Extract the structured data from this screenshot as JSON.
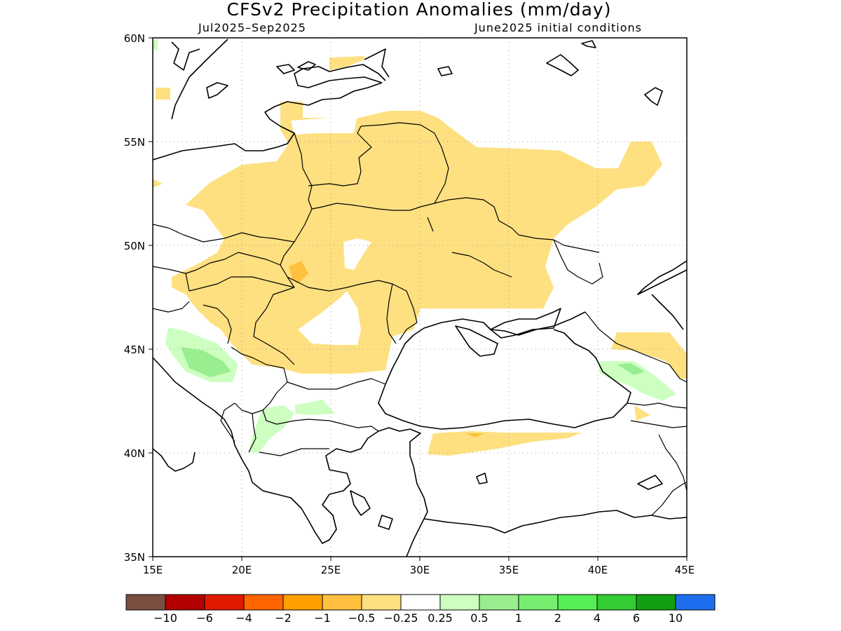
{
  "map": {
    "title": "CFSv2 Precipitation Anomalies (mm/day)",
    "subtitle_left": "Jul2025–Sep2025",
    "subtitle_right": "June2025 initial conditions",
    "lon_ticks": [
      "15E",
      "20E",
      "25E",
      "30E",
      "35E",
      "40E",
      "45E"
    ],
    "lat_ticks": [
      "60N",
      "55N",
      "50N",
      "45N",
      "40N",
      "35N"
    ],
    "extent": {
      "lon": [
        15,
        45
      ],
      "lat": [
        35,
        60
      ]
    },
    "grid": "dotted"
  },
  "colorbar": {
    "colors": [
      "#7a4f42",
      "#b30000",
      "#e01a00",
      "#ff6600",
      "#ffa000",
      "#ffc040",
      "#ffe080",
      "#ffffff",
      "#ccffc0",
      "#99ee90",
      "#77ee70",
      "#55ee55",
      "#33cc33",
      "#11a011",
      "#1e6ff0"
    ],
    "labels": [
      "−10",
      "−6",
      "−4",
      "−2",
      "−1",
      "−0.5",
      "−0.25",
      "0.25",
      "0.5",
      "1",
      "2",
      "4",
      "6",
      "10"
    ]
  },
  "legend_colors": {
    "light_negative": "#ffe080",
    "moderate_negative": "#ffc040",
    "light_positive": "#ccffc0",
    "moderate_positive": "#99ee90"
  }
}
